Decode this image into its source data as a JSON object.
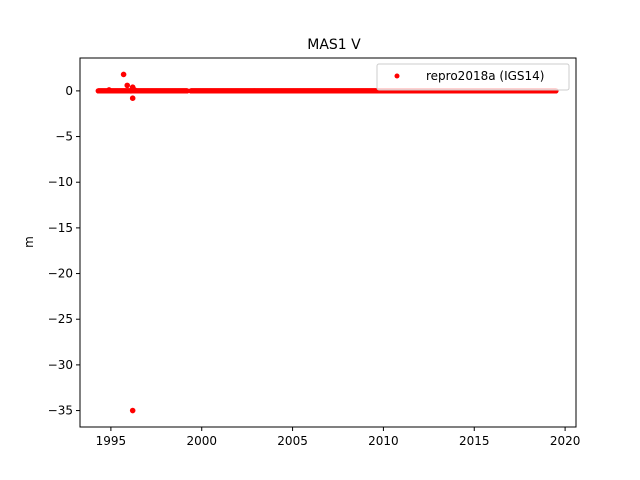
{
  "chart_data": {
    "type": "scatter",
    "title": "MAS1 V",
    "xlabel": "",
    "ylabel": "m",
    "xlim": [
      1993.3,
      2020.6
    ],
    "ylim": [
      -36.8,
      3.6
    ],
    "xticks": [
      1995,
      2000,
      2005,
      2010,
      2015,
      2020
    ],
    "yticks": [
      0,
      -5,
      -10,
      -15,
      -20,
      -25,
      -30,
      -35
    ],
    "ytick_labels": [
      "0",
      "−5",
      "−10",
      "−15",
      "−20",
      "−25",
      "−30",
      "−35"
    ],
    "grid": false,
    "legend_position": "top-right",
    "series": [
      {
        "name": "repro2018a (IGS14)",
        "color": "#ff0000",
        "marker": "circle",
        "dense_segments": [
          {
            "x_start": 1994.3,
            "x_end": 1999.2,
            "y": 0.0
          },
          {
            "x_start": 1999.4,
            "x_end": 2019.5,
            "y": 0.0
          }
        ],
        "points": [
          {
            "x": 1994.9,
            "y": 0.1
          },
          {
            "x": 1995.7,
            "y": 1.8
          },
          {
            "x": 1995.9,
            "y": 0.6
          },
          {
            "x": 1996.1,
            "y": 0.0
          },
          {
            "x": 1996.2,
            "y": -0.8
          },
          {
            "x": 1996.2,
            "y": 0.4
          },
          {
            "x": 1996.3,
            "y": 0.1
          },
          {
            "x": 1996.2,
            "y": -35.0
          }
        ]
      }
    ]
  }
}
